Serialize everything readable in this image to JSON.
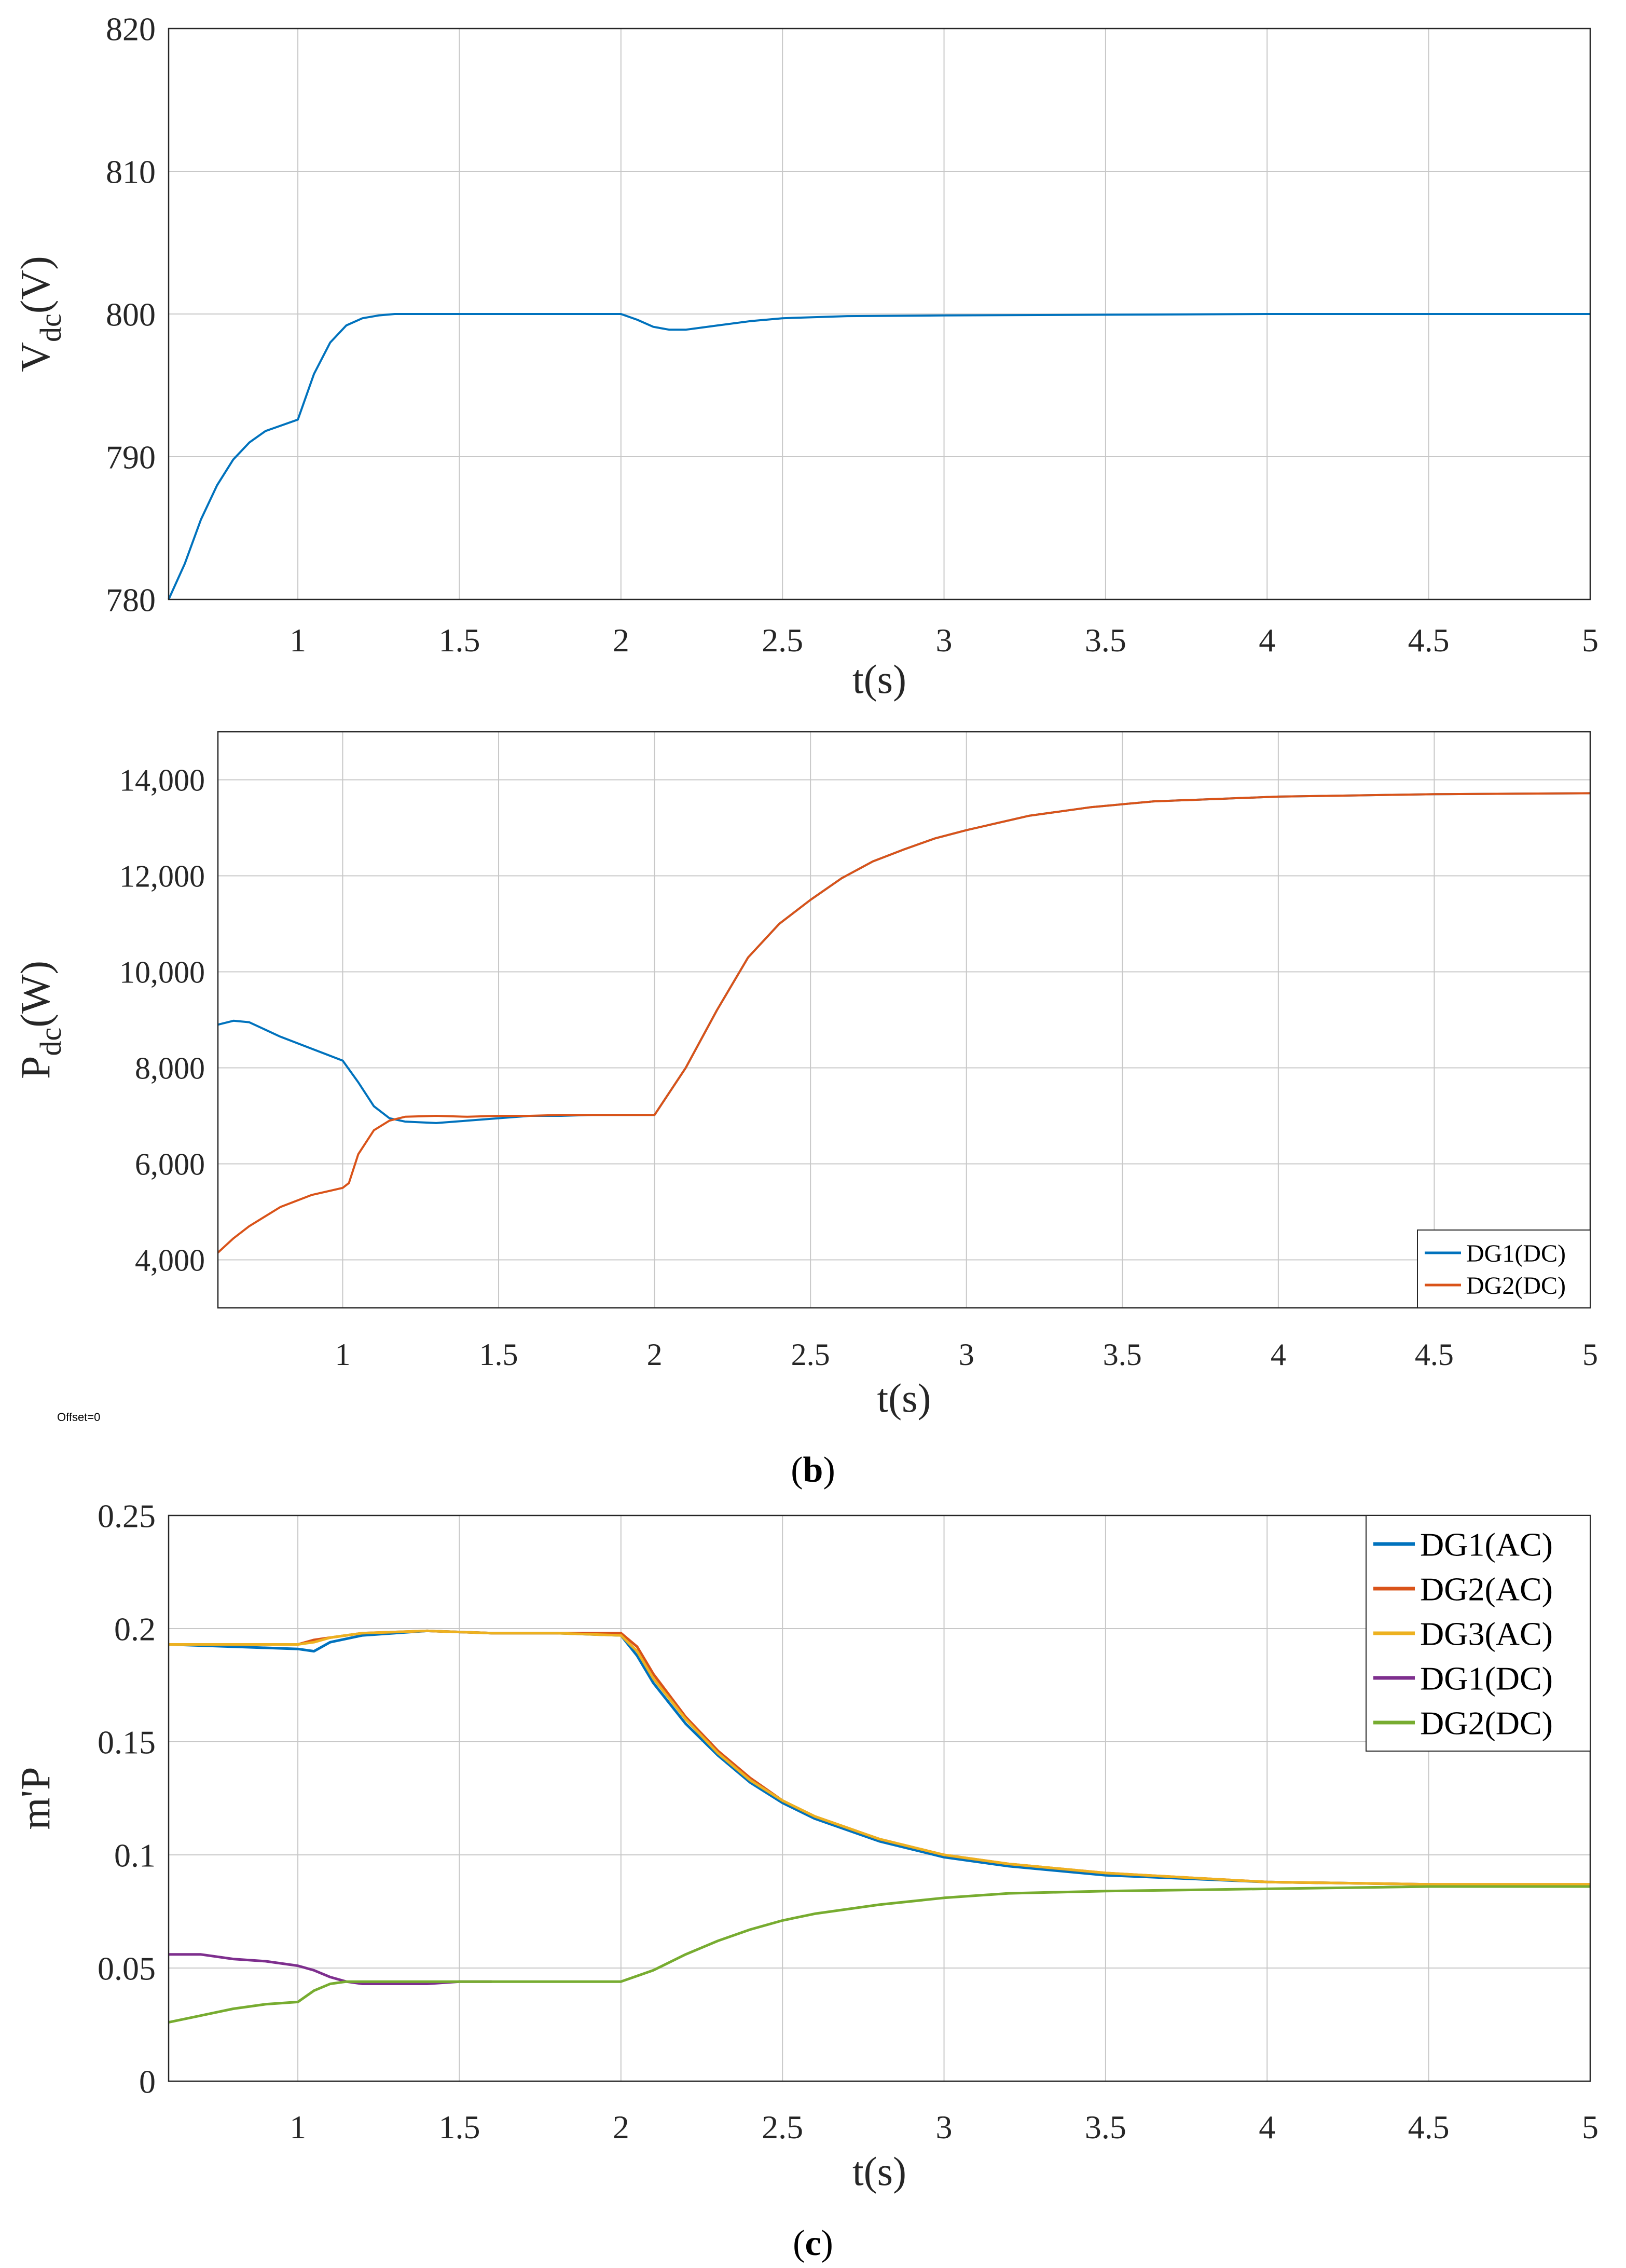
{
  "offset_label": "Offset=0",
  "captions": {
    "b": {
      "open": "(",
      "letter": "b",
      "close": ")"
    },
    "c": {
      "open": "(",
      "letter": "c",
      "close": ")"
    }
  },
  "chart_data": [
    {
      "id": "vdc",
      "type": "line",
      "xlabel": "t(s)",
      "ylabel": {
        "main": "V",
        "sub": "dc",
        "rest": "(V)"
      },
      "xlim": [
        0.6,
        5
      ],
      "ylim": [
        780,
        820
      ],
      "xticks": [
        1,
        1.5,
        2,
        2.5,
        3,
        3.5,
        4,
        4.5,
        5
      ],
      "xtick_labels": [
        "1",
        "1.5",
        "2",
        "2.5",
        "3",
        "3.5",
        "4",
        "4.5",
        "5"
      ],
      "yticks": [
        780,
        790,
        800,
        810,
        820
      ],
      "ytick_labels": [
        "780",
        "790",
        "800",
        "810",
        "820"
      ],
      "grid": true,
      "legend": null,
      "series": [
        {
          "name": "Vdc",
          "color": "#0072BD",
          "x": [
            0.6,
            0.65,
            0.7,
            0.75,
            0.8,
            0.85,
            0.9,
            0.95,
            1.0,
            1.05,
            1.1,
            1.15,
            1.2,
            1.25,
            1.3,
            1.35,
            1.4,
            1.5,
            1.6,
            1.8,
            2.0,
            2.05,
            2.1,
            2.15,
            2.2,
            2.3,
            2.4,
            2.5,
            2.7,
            3.0,
            3.5,
            4.0,
            4.5,
            5.0
          ],
          "y": [
            780.0,
            782.5,
            785.6,
            788.0,
            789.8,
            791.0,
            791.8,
            792.2,
            792.6,
            795.8,
            798.0,
            799.2,
            799.7,
            799.9,
            800.0,
            800.0,
            800.0,
            800.0,
            800.0,
            800.0,
            800.0,
            799.6,
            799.1,
            798.9,
            798.9,
            799.2,
            799.5,
            799.7,
            799.85,
            799.9,
            799.95,
            800.0,
            800.0,
            800.0
          ]
        }
      ]
    },
    {
      "id": "pdc",
      "type": "line",
      "xlabel": "t(s)",
      "ylabel": {
        "main": "P",
        "sub": "dc",
        "rest": "(W)"
      },
      "xlim": [
        0.6,
        5
      ],
      "ylim": [
        3000,
        15000
      ],
      "xticks": [
        1,
        1.5,
        2,
        2.5,
        3,
        3.5,
        4,
        4.5,
        5
      ],
      "xtick_labels": [
        "1",
        "1.5",
        "2",
        "2.5",
        "3",
        "3.5",
        "4",
        "4.5",
        "5"
      ],
      "yticks": [
        4000,
        6000,
        8000,
        10000,
        12000,
        14000
      ],
      "ytick_labels": [
        "4,000",
        "6,000",
        "8,000",
        "10,000",
        "12,000",
        "14,000"
      ],
      "grid": true,
      "legend": "bottom-right",
      "series": [
        {
          "name": "DG1(DC)",
          "color": "#0072BD",
          "x": [
            0.6,
            0.65,
            0.7,
            0.8,
            0.9,
            1.0,
            1.05,
            1.1,
            1.15,
            1.2,
            1.3,
            1.4,
            1.5,
            1.6,
            1.7,
            1.8,
            1.9,
            2.0,
            2.1,
            2.2,
            2.3,
            2.4,
            2.5,
            2.6,
            2.7,
            2.8,
            2.9,
            3.0,
            3.2,
            3.4,
            3.6,
            3.8,
            4.0,
            4.5,
            5.0
          ],
          "y": [
            8900,
            8980,
            8950,
            8650,
            8400,
            8150,
            7700,
            7200,
            6950,
            6880,
            6850,
            6900,
            6950,
            7000,
            7000,
            7020,
            7020,
            7020,
            8000,
            9200,
            10300,
            11000,
            11500,
            11950,
            12300,
            12550,
            12780,
            12950,
            13250,
            13430,
            13550,
            13600,
            13650,
            13700,
            13720
          ]
        },
        {
          "name": "DG2(DC)",
          "color": "#D95319",
          "x": [
            0.6,
            0.65,
            0.7,
            0.8,
            0.9,
            1.0,
            1.02,
            1.05,
            1.1,
            1.15,
            1.2,
            1.3,
            1.4,
            1.5,
            1.6,
            1.7,
            1.8,
            1.9,
            2.0,
            2.1,
            2.2,
            2.3,
            2.4,
            2.5,
            2.6,
            2.7,
            2.8,
            2.9,
            3.0,
            3.2,
            3.4,
            3.6,
            3.8,
            4.0,
            4.5,
            5.0
          ],
          "y": [
            4150,
            4450,
            4700,
            5100,
            5350,
            5500,
            5600,
            6200,
            6700,
            6900,
            6980,
            7000,
            6980,
            7000,
            7000,
            7020,
            7020,
            7020,
            7020,
            8000,
            9200,
            10300,
            11000,
            11500,
            11950,
            12300,
            12550,
            12780,
            12950,
            13250,
            13430,
            13550,
            13600,
            13650,
            13700,
            13720
          ]
        }
      ]
    },
    {
      "id": "mp",
      "type": "line",
      "xlabel": "t(s)",
      "ylabel": {
        "main": "m'P",
        "sub": "",
        "rest": ""
      },
      "xlim": [
        0.6,
        5
      ],
      "ylim": [
        0,
        0.25
      ],
      "xticks": [
        1,
        1.5,
        2,
        2.5,
        3,
        3.5,
        4,
        4.5,
        5
      ],
      "xtick_labels": [
        "1",
        "1.5",
        "2",
        "2.5",
        "3",
        "3.5",
        "4",
        "4.5",
        "5"
      ],
      "yticks": [
        0,
        0.05,
        0.1,
        0.15,
        0.2,
        0.25
      ],
      "ytick_labels": [
        "0",
        "0.05",
        "0.1",
        "0.15",
        "0.2",
        "0.25"
      ],
      "grid": true,
      "legend": "top-right",
      "series": [
        {
          "name": "DG1(AC)",
          "color": "#0072BD",
          "x": [
            0.6,
            0.8,
            1.0,
            1.05,
            1.1,
            1.2,
            1.4,
            1.6,
            1.8,
            2.0,
            2.05,
            2.1,
            2.2,
            2.3,
            2.4,
            2.5,
            2.6,
            2.8,
            3.0,
            3.2,
            3.5,
            4.0,
            4.5,
            5.0
          ],
          "y": [
            0.193,
            0.192,
            0.191,
            0.19,
            0.194,
            0.197,
            0.199,
            0.198,
            0.198,
            0.197,
            0.188,
            0.176,
            0.158,
            0.144,
            0.132,
            0.123,
            0.116,
            0.106,
            0.099,
            0.095,
            0.091,
            0.088,
            0.087,
            0.086
          ]
        },
        {
          "name": "DG2(AC)",
          "color": "#D95319",
          "x": [
            0.6,
            0.8,
            1.0,
            1.05,
            1.1,
            1.2,
            1.4,
            1.6,
            1.8,
            2.0,
            2.05,
            2.1,
            2.2,
            2.3,
            2.4,
            2.5,
            2.6,
            2.8,
            3.0,
            3.2,
            3.5,
            4.0,
            4.5,
            5.0
          ],
          "y": [
            0.193,
            0.193,
            0.193,
            0.195,
            0.196,
            0.198,
            0.199,
            0.198,
            0.198,
            0.198,
            0.192,
            0.18,
            0.161,
            0.146,
            0.134,
            0.124,
            0.117,
            0.107,
            0.1,
            0.096,
            0.092,
            0.088,
            0.087,
            0.087
          ]
        },
        {
          "name": "DG3(AC)",
          "color": "#EDB120",
          "x": [
            0.6,
            0.8,
            1.0,
            1.05,
            1.1,
            1.2,
            1.4,
            1.6,
            1.8,
            2.0,
            2.05,
            2.1,
            2.2,
            2.3,
            2.4,
            2.5,
            2.6,
            2.8,
            3.0,
            3.2,
            3.5,
            4.0,
            4.5,
            5.0
          ],
          "y": [
            0.193,
            0.193,
            0.193,
            0.194,
            0.196,
            0.198,
            0.199,
            0.198,
            0.198,
            0.197,
            0.19,
            0.178,
            0.16,
            0.145,
            0.133,
            0.124,
            0.117,
            0.107,
            0.1,
            0.096,
            0.092,
            0.088,
            0.087,
            0.087
          ]
        },
        {
          "name": "DG1(DC)",
          "color": "#7E2F8E",
          "x": [
            0.6,
            0.7,
            0.8,
            0.9,
            1.0,
            1.05,
            1.1,
            1.15,
            1.2,
            1.3,
            1.4,
            1.5,
            1.6
          ],
          "y": [
            0.056,
            0.056,
            0.054,
            0.053,
            0.051,
            0.049,
            0.046,
            0.044,
            0.043,
            0.043,
            0.043,
            0.044,
            0.044
          ]
        },
        {
          "name": "DG2(DC)",
          "color": "#77AC30",
          "x": [
            0.6,
            0.7,
            0.8,
            0.9,
            1.0,
            1.05,
            1.1,
            1.15,
            1.2,
            1.3,
            1.5,
            1.8,
            2.0,
            2.1,
            2.2,
            2.3,
            2.4,
            2.5,
            2.6,
            2.8,
            3.0,
            3.2,
            3.5,
            4.0,
            4.5,
            5.0
          ],
          "y": [
            0.026,
            0.029,
            0.032,
            0.034,
            0.035,
            0.04,
            0.043,
            0.044,
            0.044,
            0.044,
            0.044,
            0.044,
            0.044,
            0.049,
            0.056,
            0.062,
            0.067,
            0.071,
            0.074,
            0.078,
            0.081,
            0.083,
            0.084,
            0.085,
            0.086,
            0.086
          ]
        }
      ]
    }
  ]
}
